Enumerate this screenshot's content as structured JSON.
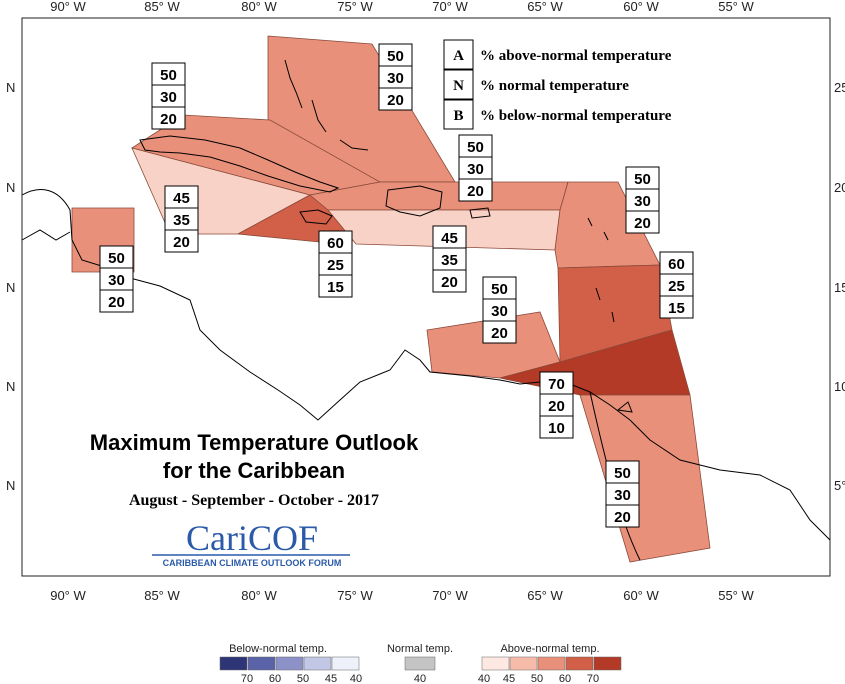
{
  "map": {
    "title_line1": "Maximum Temperature Outlook",
    "title_line2": "for the Caribbean",
    "period": "August - September - October - 2017",
    "logo_text": "CariCOF",
    "logo_subtext": "CARIBBEAN CLIMATE OUTLOOK FORUM",
    "lon_ticks": [
      "90° W",
      "85° W",
      "80° W",
      "75° W",
      "70° W",
      "65° W",
      "60° W",
      "55° W"
    ],
    "lat_ticks_right": [
      "25°",
      "20°",
      "15°",
      "10°",
      "5°"
    ],
    "lat_tick_left": "N"
  },
  "legend": {
    "items": [
      {
        "letter": "A",
        "text": "% above-normal temperature"
      },
      {
        "letter": "N",
        "text": "% normal temperature"
      },
      {
        "letter": "B",
        "text": "% below-normal temperature"
      }
    ]
  },
  "regions": [
    {
      "name": "bahamas",
      "A": "50",
      "N": "30",
      "B": "20",
      "color": "#e8907a"
    },
    {
      "name": "cuba",
      "A": "50",
      "N": "30",
      "B": "20",
      "color": "#e8907a"
    },
    {
      "name": "cayman",
      "A": "45",
      "N": "35",
      "B": "20",
      "color": "#f8d2c6"
    },
    {
      "name": "jamaica",
      "A": "60",
      "N": "25",
      "B": "15",
      "color": "#d25f47"
    },
    {
      "name": "hispaniola-north",
      "A": "50",
      "N": "30",
      "B": "20",
      "color": "#e8907a"
    },
    {
      "name": "hispaniola-south",
      "A": "45",
      "N": "35",
      "B": "20",
      "color": "#f8d2c6"
    },
    {
      "name": "belize",
      "A": "50",
      "N": "30",
      "B": "20",
      "color": "#e8907a"
    },
    {
      "name": "leeward",
      "A": "50",
      "N": "30",
      "B": "20",
      "color": "#e8907a"
    },
    {
      "name": "windward",
      "A": "60",
      "N": "25",
      "B": "15",
      "color": "#d25f47"
    },
    {
      "name": "abc-islands",
      "A": "50",
      "N": "30",
      "B": "20",
      "color": "#e8907a"
    },
    {
      "name": "trinidad",
      "A": "70",
      "N": "20",
      "B": "10",
      "color": "#b33a26"
    },
    {
      "name": "guianas",
      "A": "50",
      "N": "30",
      "B": "20",
      "color": "#e8907a"
    }
  ],
  "colorbar": {
    "below_title": "Below-normal temp.",
    "normal_title": "Normal temp.",
    "above_title": "Above-normal temp.",
    "below_colors": [
      "#2e3577",
      "#5a63a8",
      "#8c92c8",
      "#c3c7e6",
      "#eef0fa"
    ],
    "below_ticks": [
      "70",
      "60",
      "50",
      "45",
      "40"
    ],
    "normal_color": "#c4c4c4",
    "normal_tick": "40",
    "above_colors": [
      "#fde9e2",
      "#f7bca9",
      "#e8907a",
      "#d25f47",
      "#b33a26"
    ],
    "above_ticks": [
      "40",
      "45",
      "50",
      "60",
      "70"
    ]
  }
}
